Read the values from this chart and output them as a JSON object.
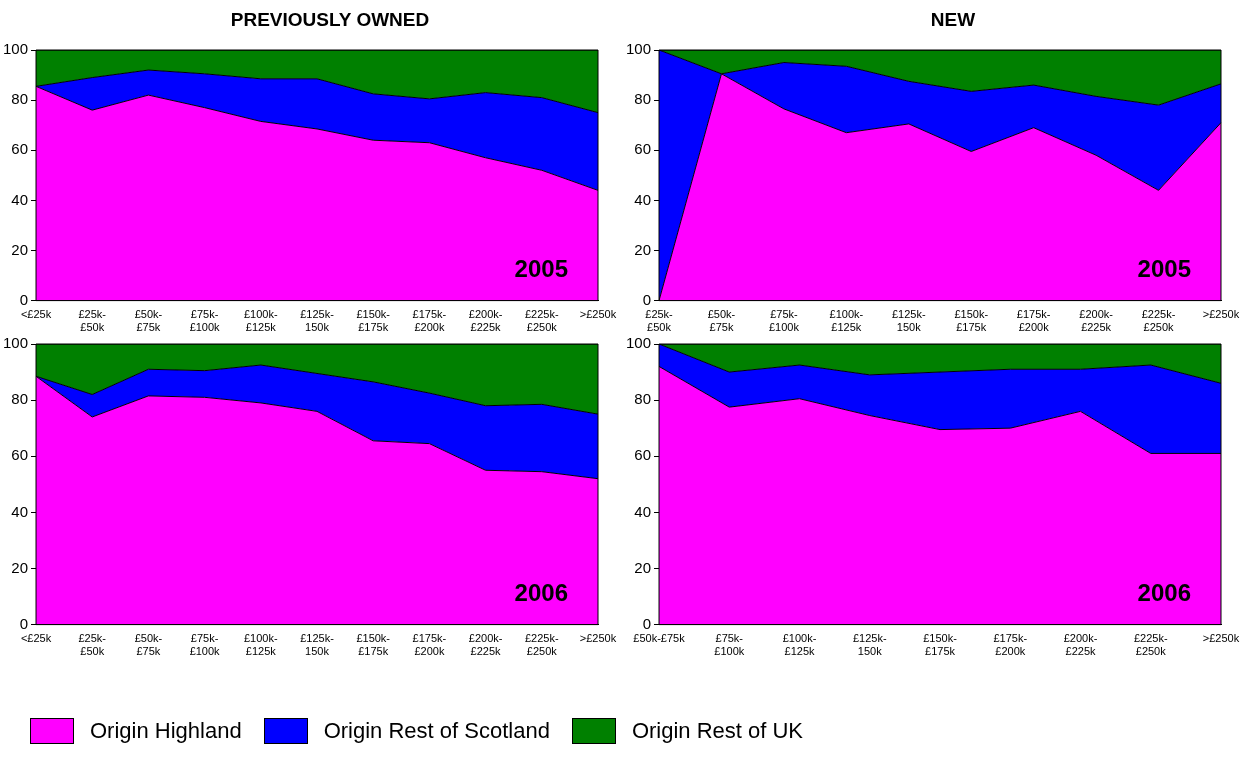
{
  "chart_data": [
    {
      "type": "area",
      "title": "PREVIOUSLY OWNED",
      "stacked": true,
      "categories": [
        "<£25k",
        "£25k-\n£50k",
        "£50k-\n£75k",
        "£75k-\n£100k",
        "£100k-\n£125k",
        "£125k-\n150k",
        "£150k-\n£175k",
        "£175k-\n£200k",
        "£200k-\n£225k",
        "£225k-\n£250k",
        ">£250k"
      ],
      "series": [
        {
          "name": "Origin Highland",
          "color": "#ff00ff",
          "values": [
            85.5,
            76,
            82,
            77,
            71.5,
            68.5,
            64,
            63,
            57,
            52,
            44
          ]
        },
        {
          "name": "Origin Rest of Scotland",
          "color": "#0000ff",
          "values": [
            0,
            13,
            10,
            13.5,
            17,
            20,
            18.5,
            17.5,
            26,
            29,
            31
          ]
        },
        {
          "name": "Origin Rest of UK",
          "color": "#008000",
          "values": [
            14.5,
            11,
            8,
            9.5,
            11.5,
            11.5,
            17.5,
            19.5,
            17,
            19,
            25
          ]
        }
      ],
      "ylim": [
        0,
        100
      ],
      "yticks": [
        0,
        20,
        40,
        60,
        80,
        100
      ],
      "grid": false,
      "legend": "bottom",
      "annotations": [
        "2005"
      ]
    },
    {
      "type": "area",
      "title": "NEW",
      "stacked": true,
      "categories": [
        "£25k-\n£50k",
        "£50k-\n£75k",
        "£75k-\n£100k",
        "£100k-\n£125k",
        "£125k-\n150k",
        "£150k-\n£175k",
        "£175k-\n£200k",
        "£200k-\n£225k",
        "£225k-\n£250k",
        ">£250k"
      ],
      "series": [
        {
          "color": "#ff00ff",
          "values": [
            0,
            90.5,
            76.5,
            67,
            70.5,
            59.5,
            69,
            58,
            44,
            71
          ]
        },
        {
          "color": "#0000ff",
          "values": [
            100,
            0,
            18.5,
            26.5,
            17,
            24,
            17,
            23.5,
            34,
            15.5
          ]
        },
        {
          "color": "#008000",
          "values": [
            0,
            9.5,
            5,
            6.5,
            12.5,
            16.5,
            14,
            18.5,
            22,
            13.5
          ]
        }
      ],
      "ylim": [
        0,
        100
      ],
      "yticks": [
        0,
        20,
        40,
        60,
        80,
        100
      ],
      "grid": false,
      "legend": false,
      "annotations": [
        "2005"
      ]
    },
    {
      "type": "area",
      "stacked": true,
      "categories": [
        "<£25k",
        "£25k-\n£50k",
        "£50k-\n£75k",
        "£75k-\n£100k",
        "£100k-\n£125k",
        "£125k-\n150k",
        "£150k-\n£175k",
        "£175k-\n£200k",
        "£200k-\n£225k",
        "£225k-\n£250k",
        ">£250k"
      ],
      "series": [
        {
          "color": "#ff00ff",
          "values": [
            88.5,
            74,
            81.5,
            81,
            79,
            76,
            65.5,
            64.5,
            55,
            54.5,
            52
          ]
        },
        {
          "color": "#0000ff",
          "values": [
            0,
            8,
            9.5,
            9.5,
            13.5,
            13.5,
            21,
            18,
            23,
            24,
            23
          ]
        },
        {
          "color": "#008000",
          "values": [
            11.5,
            18,
            9,
            9.5,
            7.5,
            10.5,
            13.5,
            17.5,
            22,
            21.5,
            25
          ]
        }
      ],
      "ylim": [
        0,
        100
      ],
      "yticks": [
        0,
        20,
        40,
        60,
        80,
        100
      ],
      "grid": false,
      "legend": false,
      "annotations": [
        "2006"
      ]
    },
    {
      "type": "area",
      "stacked": true,
      "categories": [
        "£50k-£75k",
        "£75k-\n£100k",
        "£100k-\n£125k",
        "£125k-\n150k",
        "£150k-\n£175k",
        "£175k-\n£200k",
        "£200k-\n£225k",
        "£225k-\n£250k",
        ">£250k"
      ],
      "series": [
        {
          "color": "#ff00ff",
          "values": [
            92,
            77.5,
            80.5,
            74.5,
            69.5,
            70,
            76,
            61,
            61
          ]
        },
        {
          "color": "#0000ff",
          "values": [
            8,
            12.5,
            12,
            14.5,
            20.5,
            21,
            15,
            31.5,
            25
          ]
        },
        {
          "color": "#008000",
          "values": [
            0,
            10,
            7.5,
            11,
            10,
            9,
            9,
            7.5,
            14
          ]
        }
      ],
      "ylim": [
        0,
        100
      ],
      "yticks": [
        0,
        20,
        40,
        60,
        80,
        100
      ],
      "grid": false,
      "legend": false,
      "annotations": [
        "2006"
      ]
    }
  ]
}
